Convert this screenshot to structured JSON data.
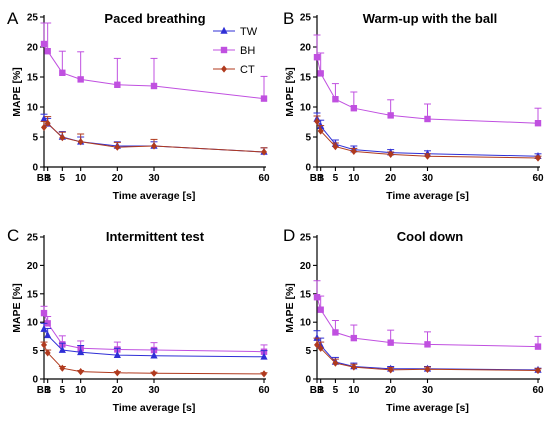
{
  "chart_data": [
    {
      "type": "line",
      "panel": "A",
      "title": "Paced breathing",
      "xlabel": "Time average [s]",
      "ylabel": "MAPE [%]",
      "ylim": [
        0,
        25
      ],
      "yticks": [
        0,
        5,
        10,
        15,
        20,
        25
      ],
      "xticks": [
        "BB",
        "1",
        "5",
        "10",
        "20",
        "30",
        "60"
      ],
      "x": [
        0,
        1,
        5,
        10,
        20,
        30,
        60
      ],
      "legend": "top-right",
      "series": [
        {
          "name": "TW",
          "values": [
            8.0,
            7.2,
            5.0,
            4.2,
            3.5,
            3.5,
            2.5
          ],
          "errors": [
            0.8,
            0.9,
            0.9,
            0.8,
            0.7,
            0.7,
            0.7
          ]
        },
        {
          "name": "BH",
          "values": [
            20.5,
            19.3,
            15.7,
            14.6,
            13.7,
            13.5,
            11.4
          ],
          "errors": [
            3.5,
            4.7,
            3.6,
            4.6,
            4.4,
            4.6,
            3.7
          ]
        },
        {
          "name": "CT",
          "values": [
            6.6,
            7.3,
            4.9,
            4.2,
            3.3,
            3.5,
            2.5
          ],
          "errors": [
            1.0,
            1.1,
            0.9,
            1.3,
            0.8,
            1.1,
            0.7
          ]
        }
      ]
    },
    {
      "type": "line",
      "panel": "B",
      "title": "Warm-up with the ball",
      "xlabel": "Time average [s]",
      "ylabel": "MAPE [%]",
      "ylim": [
        0,
        25
      ],
      "yticks": [
        0,
        5,
        10,
        15,
        20,
        25
      ],
      "xticks": [
        "BB",
        "1",
        "5",
        "10",
        "20",
        "30",
        "60"
      ],
      "x": [
        0,
        1,
        5,
        10,
        20,
        30,
        60
      ],
      "series": [
        {
          "name": "TW",
          "values": [
            8.0,
            6.8,
            3.8,
            2.9,
            2.4,
            2.2,
            1.8
          ],
          "errors": [
            1.0,
            1.0,
            0.7,
            0.6,
            0.5,
            0.5,
            0.4
          ]
        },
        {
          "name": "BH",
          "values": [
            18.3,
            15.6,
            11.3,
            9.8,
            8.6,
            8.0,
            7.3
          ],
          "errors": [
            3.7,
            3.4,
            2.6,
            2.7,
            2.6,
            2.5,
            2.5
          ]
        },
        {
          "name": "CT",
          "values": [
            7.6,
            6.0,
            3.4,
            2.6,
            2.1,
            1.8,
            1.5
          ],
          "errors": [
            0.9,
            0.9,
            0.6,
            0.5,
            0.4,
            0.4,
            0.3
          ]
        }
      ]
    },
    {
      "type": "line",
      "panel": "C",
      "title": "Intermittent test",
      "xlabel": "Time average [s]",
      "ylabel": "MAPE [%]",
      "ylim": [
        0,
        25
      ],
      "yticks": [
        0,
        5,
        10,
        15,
        20,
        25
      ],
      "xticks": [
        "BB",
        "1",
        "5",
        "10",
        "20",
        "30",
        "60"
      ],
      "x": [
        0,
        1,
        5,
        10,
        20,
        30,
        60
      ],
      "series": [
        {
          "name": "TW",
          "values": [
            8.8,
            7.7,
            5.1,
            4.7,
            4.2,
            4.1,
            3.9
          ],
          "errors": [
            1.0,
            1.2,
            1.2,
            1.2,
            1.2,
            1.2,
            1.1
          ]
        },
        {
          "name": "BH",
          "values": [
            11.6,
            9.8,
            6.1,
            5.4,
            5.2,
            5.1,
            4.8
          ],
          "errors": [
            1.2,
            1.2,
            1.5,
            1.3,
            1.3,
            1.3,
            1.2
          ]
        },
        {
          "name": "CT",
          "values": [
            6.0,
            4.6,
            1.9,
            1.3,
            1.1,
            1.0,
            0.9
          ],
          "errors": [
            0.5,
            0.5,
            0.3,
            0.2,
            0.2,
            0.2,
            0.2
          ]
        }
      ]
    },
    {
      "type": "line",
      "panel": "D",
      "title": "Cool down",
      "xlabel": "Time average [s]",
      "ylabel": "MAPE [%]",
      "ylim": [
        0,
        25
      ],
      "yticks": [
        0,
        5,
        10,
        15,
        20,
        25
      ],
      "xticks": [
        "BB",
        "1",
        "5",
        "10",
        "20",
        "30",
        "60"
      ],
      "x": [
        0,
        1,
        5,
        10,
        20,
        30,
        60
      ],
      "series": [
        {
          "name": "TW",
          "values": [
            7.2,
            5.9,
            3.0,
            2.2,
            1.8,
            1.8,
            1.6
          ],
          "errors": [
            1.3,
            1.3,
            0.8,
            0.6,
            0.4,
            0.4,
            0.3
          ]
        },
        {
          "name": "BH",
          "values": [
            14.4,
            12.2,
            8.2,
            7.2,
            6.4,
            6.1,
            5.7
          ],
          "errors": [
            2.9,
            2.4,
            2.1,
            2.3,
            2.2,
            2.2,
            1.8
          ]
        },
        {
          "name": "CT",
          "values": [
            6.0,
            5.4,
            2.8,
            2.1,
            1.6,
            1.7,
            1.5
          ],
          "errors": [
            1.2,
            1.1,
            0.7,
            0.5,
            0.4,
            0.4,
            0.3
          ]
        }
      ]
    }
  ],
  "series_colors": {
    "TW": "#2f2fd6",
    "BH": "#c050e0",
    "CT": "#b03a1e"
  },
  "series_markers": {
    "TW": "triangle",
    "BH": "square",
    "CT": "diamond"
  }
}
